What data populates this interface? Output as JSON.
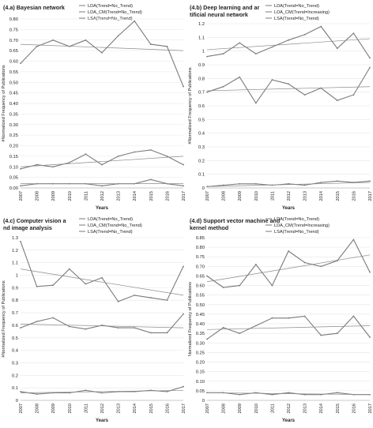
{
  "chart_data": [
    {
      "type": "line",
      "title": "(4.a) Bayesian network",
      "xlabel": "Years",
      "ylabel": "#Normalized Frequency of Publications",
      "categories": [
        "2007",
        "2008",
        "2009",
        "2010",
        "2011",
        "2012",
        "2013",
        "2014",
        "2015",
        "2016",
        "2017"
      ],
      "yticks": [
        "0.00",
        "0.05",
        "0.10",
        "0.15",
        "0.20",
        "0.25",
        "0.30",
        "0.35",
        "0.40",
        "0.45",
        "0.50",
        "0.55",
        "0.60",
        "0.65",
        "0.70",
        "0.75",
        "0.80"
      ],
      "ylim": [
        0,
        0.8
      ],
      "legend": [
        "LDA(Trend=No_Trend)",
        "LDA_CM(Trend=No_Trend)",
        "LSA(Trend=No_Trend)"
      ],
      "series": [
        {
          "name": "LDA(Trend=No_Trend)",
          "values": [
            0.59,
            0.67,
            0.7,
            0.67,
            0.7,
            0.64,
            0.72,
            0.79,
            0.68,
            0.67,
            0.48
          ],
          "trend": [
            0.68,
            0.65
          ]
        },
        {
          "name": "LDA_CM(Trend=No_Trend)",
          "values": [
            0.09,
            0.11,
            0.1,
            0.12,
            0.16,
            0.11,
            0.15,
            0.17,
            0.18,
            0.15,
            0.11
          ],
          "trend": [
            0.1,
            0.15
          ]
        },
        {
          "name": "LSA(Trend=No_Trend)",
          "values": [
            0.01,
            0.02,
            0.02,
            0.02,
            0.02,
            0.01,
            0.02,
            0.02,
            0.04,
            0.02,
            0.01
          ],
          "trend": [
            0.02,
            0.02
          ]
        }
      ]
    },
    {
      "type": "line",
      "title": "(4.b) Deep learning and artificial neural network",
      "xlabel": "Years",
      "ylabel": "#Normalized Frequency of Publications",
      "categories": [
        "2007",
        "2008",
        "2009",
        "2010",
        "2011",
        "2012",
        "2013",
        "2014",
        "2015",
        "2016",
        "2017"
      ],
      "yticks": [
        "0",
        "0.1",
        "0.2",
        "0.3",
        "0.4",
        "0.5",
        "0.6",
        "0.7",
        "0.8",
        "0.9",
        "1",
        "1.1",
        "1.2"
      ],
      "ylim": [
        0,
        1.2
      ],
      "legend": [
        "LDA(Trend=No_Trend)",
        "LDA_CM(Trend=Increasing)",
        "LSA(Trend=No_Trend)"
      ],
      "series": [
        {
          "name": "LDA(Trend=No_Trend)",
          "values": [
            0.96,
            0.98,
            1.06,
            0.98,
            1.03,
            1.08,
            1.12,
            1.18,
            1.02,
            1.13,
            0.95
          ],
          "trend": [
            1.01,
            1.09
          ]
        },
        {
          "name": "LDA_CM(Trend=Increasing)",
          "values": [
            0.7,
            0.74,
            0.81,
            0.62,
            0.79,
            0.76,
            0.68,
            0.73,
            0.64,
            0.68,
            0.88
          ],
          "trend": [
            0.71,
            0.74
          ]
        },
        {
          "name": "LSA(Trend=No_Trend)",
          "values": [
            0.01,
            0.02,
            0.03,
            0.03,
            0.02,
            0.03,
            0.02,
            0.04,
            0.05,
            0.04,
            0.05
          ],
          "trend": [
            0.01,
            0.04
          ]
        }
      ]
    },
    {
      "type": "line",
      "title": "(4.c) Computer vision and image analysis",
      "xlabel": "Years",
      "ylabel": "#Normalized Frequency of Publications",
      "categories": [
        "2007",
        "2008",
        "2009",
        "2010",
        "2011",
        "2012",
        "2013",
        "2014",
        "2015",
        "2016",
        "2017"
      ],
      "yticks": [
        "0",
        "0.1",
        "0.2",
        "0.3",
        "0.4",
        "0.5",
        "0.6",
        "0.7",
        "0.8",
        "0.9",
        "1",
        "1.1",
        "1.2",
        "1.3"
      ],
      "ylim": [
        0,
        1.3
      ],
      "legend": [
        "LDA(Trend=No_Trend)",
        "LDA_CM(Trend=No_Trend)",
        "LSA(Trend=No_Trend)"
      ],
      "series": [
        {
          "name": "LDA(Trend=No_Trend)",
          "values": [
            1.27,
            0.91,
            0.92,
            1.05,
            0.93,
            0.98,
            0.79,
            0.84,
            0.82,
            0.8,
            1.07
          ],
          "trend": [
            1.05,
            0.84
          ]
        },
        {
          "name": "LDA_CM(Trend=No_Trend)",
          "values": [
            0.58,
            0.63,
            0.66,
            0.59,
            0.57,
            0.6,
            0.58,
            0.58,
            0.54,
            0.54,
            0.69
          ],
          "trend": [
            0.61,
            0.58
          ]
        },
        {
          "name": "LSA(Trend=No_Trend)",
          "values": [
            0.07,
            0.05,
            0.06,
            0.06,
            0.08,
            0.06,
            0.07,
            0.07,
            0.08,
            0.07,
            0.11
          ],
          "trend": [
            0.06,
            0.08
          ]
        }
      ]
    },
    {
      "type": "line",
      "title": "(4.d) Support vector machine and kernel method",
      "xlabel": "Years",
      "ylabel": "Normalized Frequency of Publications",
      "categories": [
        "2007",
        "2008",
        "2009",
        "2010",
        "2011",
        "2012",
        "2013",
        "2014",
        "2015",
        "2016",
        "2017"
      ],
      "yticks": [
        "0",
        "0.05",
        "0.10",
        "0.15",
        "0.20",
        "0.25",
        "0.30",
        "0.35",
        "0.40",
        "0.45",
        "0.50",
        "0.55",
        "0.60",
        "0.65",
        "0.70",
        "0.75",
        "0.80",
        "0.85"
      ],
      "ylim": [
        0,
        0.85
      ],
      "legend": [
        "LDA(Trend=No_Trend)",
        "LDA_CM(Trend=Increasing)",
        "LSA(Trend=No_Trend)"
      ],
      "series": [
        {
          "name": "LDA(Trend=No_Trend)",
          "values": [
            0.65,
            0.59,
            0.6,
            0.71,
            0.6,
            0.78,
            0.72,
            0.7,
            0.73,
            0.84,
            0.67
          ],
          "trend": [
            0.62,
            0.76
          ]
        },
        {
          "name": "LDA_CM(Trend=Increasing)",
          "values": [
            0.32,
            0.38,
            0.35,
            0.39,
            0.43,
            0.43,
            0.44,
            0.34,
            0.35,
            0.44,
            0.33
          ],
          "trend": [
            0.37,
            0.39
          ]
        },
        {
          "name": "LSA(Trend=No_Trend)",
          "values": [
            0.04,
            0.04,
            0.03,
            0.04,
            0.03,
            0.04,
            0.03,
            0.03,
            0.04,
            0.03,
            0.03
          ],
          "trend": [
            0.04,
            0.03
          ]
        }
      ]
    }
  ],
  "colors": {
    "series_line": "#7a7a7a",
    "trend_line": "#8a8a8a",
    "grid": "#e6e6e6",
    "text": "#222222"
  }
}
